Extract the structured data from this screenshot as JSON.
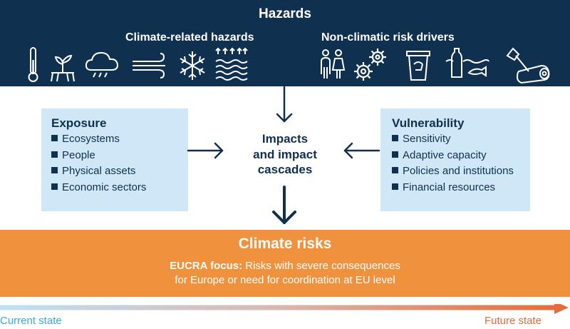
{
  "hazards": {
    "title": "Hazards",
    "climate_label": "Climate-related hazards",
    "nonclimatic_label": "Non-climatic risk drivers",
    "climate_icons": [
      "thermometer-icon",
      "drought-plant-icon",
      "rain-cloud-icon",
      "wind-icon",
      "snowflake-icon",
      "flood-waves-icon"
    ],
    "nonclimatic_icons": [
      "people-icon",
      "gears-icon",
      "recycle-bin-icon",
      "water-pollution-icon",
      "logging-axe-icon"
    ]
  },
  "exposure": {
    "title": "Exposure",
    "items": [
      "Ecosystems",
      "People",
      "Physical assets",
      "Economic sectors"
    ]
  },
  "vulnerability": {
    "title": "Vulnerability",
    "items": [
      "Sensitivity",
      "Adaptive capacity",
      "Policies and institutions",
      "Financial resources"
    ]
  },
  "impacts": {
    "line1": "Impacts",
    "line2": "and impact",
    "line3": "cascades"
  },
  "risks": {
    "title": "Climate risks",
    "focus_label": "EUCRA focus:",
    "focus_text": " Risks with severe consequences",
    "focus_text2": "for Europe or need for coordination at EU level"
  },
  "timeline": {
    "start": "Current state",
    "end": "Future state"
  },
  "colors": {
    "navy": "#10304f",
    "light_blue": "#cfe7f7",
    "orange": "#f0913e",
    "timeline_start": "#3aa6e0",
    "timeline_end": "#e56c3a"
  }
}
